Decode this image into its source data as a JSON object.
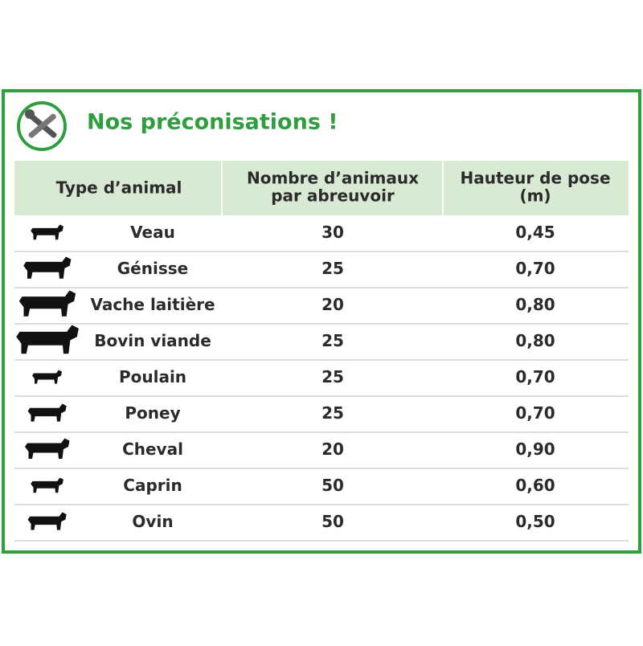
{
  "header": {
    "title": "Nos préconisations !"
  },
  "table": {
    "columns": [
      [
        "Type d’animal"
      ],
      [
        "Nombre d’animaux",
        "par abreuvoir"
      ],
      [
        "Hauteur de pose",
        "(m)"
      ]
    ],
    "rows": [
      [
        "Veau",
        "30",
        "0,45"
      ],
      [
        "Génisse",
        "25",
        "0,70"
      ],
      [
        "Vache laitière",
        "20",
        "0,80"
      ],
      [
        "Bovin viande",
        "25",
        "0,80"
      ],
      [
        "Poulain",
        "25",
        "0,70"
      ],
      [
        "Poney",
        "25",
        "0,70"
      ],
      [
        "Cheval",
        "20",
        "0,90"
      ],
      [
        "Caprin",
        "50",
        "0,60"
      ],
      [
        "Ovin",
        "50",
        "0,50"
      ]
    ]
  }
}
